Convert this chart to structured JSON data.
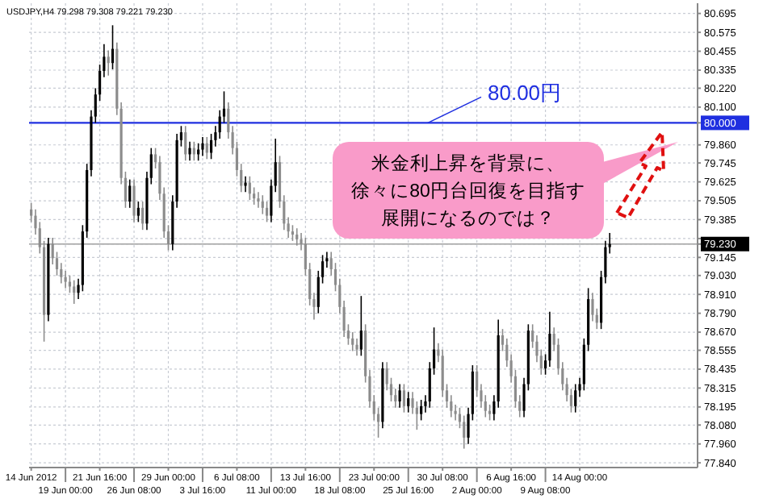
{
  "chart_data": {
    "type": "candlestick",
    "title": "USDJPY,H4 79.298 79.308 79.221 79.230",
    "categories": [
      "14 Jun 2012",
      null,
      null,
      null,
      null,
      null,
      null,
      null,
      "19 Jun 00:00",
      null,
      null,
      null,
      null,
      null,
      null,
      null,
      "21 Jun 16:00",
      null,
      null,
      null,
      null,
      null,
      null,
      null,
      "26 Jun 08:00",
      null,
      null,
      null,
      null,
      null,
      null,
      null,
      "29 Jun 00:00",
      null,
      null,
      null,
      null,
      null,
      null,
      null,
      "3 Jul 16:00",
      null,
      null,
      null,
      null,
      null,
      null,
      null,
      "6 Jul 08:00",
      null,
      null,
      null,
      null,
      null,
      null,
      null,
      "11 Jul 00:00",
      null,
      null,
      null,
      null,
      null,
      null,
      null,
      "13 Jul 16:00",
      null,
      null,
      null,
      null,
      null,
      null,
      null,
      "18 Jul 08:00",
      null,
      null,
      null,
      null,
      null,
      null,
      null,
      "23 Jul 00:00",
      null,
      null,
      null,
      null,
      null,
      null,
      null,
      "25 Jul 16:00",
      null,
      null,
      null,
      null,
      null,
      null,
      null,
      "30 Jul 08:00",
      null,
      null,
      null,
      null,
      null,
      null,
      null,
      "2 Aug 00:00",
      null,
      null,
      null,
      null,
      null,
      null,
      null,
      "6 Aug 16:00",
      null,
      null,
      null,
      null,
      null,
      null,
      null,
      "9 Aug 08:00",
      null,
      null,
      null,
      null,
      null,
      null,
      null,
      "14 Aug 00:00",
      null,
      null,
      null,
      null,
      null,
      null,
      null,
      null,
      null,
      null,
      null,
      null,
      null,
      null,
      null,
      null,
      null,
      null,
      null,
      null,
      null,
      null,
      null,
      null,
      null,
      null,
      null
    ],
    "ohlc": [
      [
        79.45,
        79.49,
        79.37,
        79.41
      ],
      [
        79.41,
        79.45,
        79.29,
        79.33
      ],
      [
        79.33,
        79.37,
        79.17,
        79.21
      ],
      [
        79.21,
        79.25,
        78.61,
        78.78
      ],
      [
        78.78,
        79.27,
        78.74,
        79.23
      ],
      [
        79.23,
        79.27,
        79.1,
        79.14
      ],
      [
        79.14,
        79.18,
        79.03,
        79.07
      ],
      [
        79.07,
        79.11,
        78.98,
        79.02
      ],
      [
        79.02,
        79.06,
        78.95,
        78.99
      ],
      [
        78.99,
        79.03,
        78.92,
        78.96
      ],
      [
        78.96,
        79.0,
        78.85,
        78.92
      ],
      [
        78.92,
        79.01,
        78.88,
        78.97
      ],
      [
        78.97,
        79.35,
        78.93,
        79.31
      ],
      [
        79.31,
        79.74,
        79.27,
        79.7
      ],
      [
        79.7,
        80.08,
        79.66,
        80.04
      ],
      [
        80.04,
        80.22,
        80.0,
        80.18
      ],
      [
        80.18,
        80.37,
        80.14,
        80.33
      ],
      [
        80.33,
        80.5,
        80.29,
        80.42
      ],
      [
        80.42,
        80.46,
        80.3,
        80.38
      ],
      [
        80.38,
        80.62,
        80.34,
        80.47
      ],
      [
        80.47,
        80.51,
        80.05,
        80.09
      ],
      [
        80.09,
        80.13,
        79.61,
        79.65
      ],
      [
        79.65,
        79.69,
        79.46,
        79.5
      ],
      [
        79.5,
        79.64,
        79.46,
        79.6
      ],
      [
        79.6,
        79.64,
        79.37,
        79.41
      ],
      [
        79.41,
        79.5,
        79.37,
        79.46
      ],
      [
        79.46,
        79.5,
        79.32,
        79.36
      ],
      [
        79.36,
        79.69,
        79.32,
        79.65
      ],
      [
        79.65,
        79.84,
        79.61,
        79.8
      ],
      [
        79.8,
        79.84,
        79.71,
        79.75
      ],
      [
        79.75,
        79.79,
        79.51,
        79.55
      ],
      [
        79.55,
        79.59,
        79.27,
        79.31
      ],
      [
        79.31,
        79.35,
        79.19,
        79.23
      ],
      [
        79.23,
        79.54,
        79.19,
        79.5
      ],
      [
        79.5,
        79.93,
        79.46,
        79.89
      ],
      [
        79.89,
        79.98,
        79.85,
        79.94
      ],
      [
        79.94,
        79.98,
        79.76,
        79.8
      ],
      [
        79.8,
        79.88,
        79.76,
        79.84
      ],
      [
        79.84,
        79.88,
        79.76,
        79.8
      ],
      [
        79.8,
        79.87,
        79.76,
        79.83
      ],
      [
        79.83,
        79.91,
        79.79,
        79.87
      ],
      [
        79.87,
        79.91,
        79.77,
        79.81
      ],
      [
        79.81,
        79.93,
        79.77,
        79.89
      ],
      [
        79.89,
        79.98,
        79.85,
        79.94
      ],
      [
        79.94,
        80.08,
        79.9,
        80.04
      ],
      [
        80.04,
        80.2,
        80.0,
        80.09
      ],
      [
        80.09,
        80.13,
        79.9,
        79.94
      ],
      [
        79.94,
        79.98,
        79.8,
        79.84
      ],
      [
        79.84,
        79.88,
        79.66,
        79.7
      ],
      [
        79.7,
        79.74,
        79.56,
        79.6
      ],
      [
        79.6,
        79.66,
        79.56,
        79.62
      ],
      [
        79.62,
        79.66,
        79.51,
        79.55
      ],
      [
        79.55,
        79.59,
        79.48,
        79.52
      ],
      [
        79.52,
        79.56,
        79.46,
        79.5
      ],
      [
        79.5,
        79.54,
        79.42,
        79.46
      ],
      [
        79.46,
        79.5,
        79.37,
        79.41
      ],
      [
        79.41,
        79.64,
        79.37,
        79.6
      ],
      [
        79.6,
        79.9,
        79.56,
        79.75
      ],
      [
        79.75,
        79.79,
        79.46,
        79.5
      ],
      [
        79.5,
        79.54,
        79.32,
        79.36
      ],
      [
        79.36,
        79.4,
        79.27,
        79.31
      ],
      [
        79.31,
        79.35,
        79.25,
        79.29
      ],
      [
        79.29,
        79.33,
        79.22,
        79.26
      ],
      [
        79.26,
        79.3,
        79.19,
        79.23
      ],
      [
        79.23,
        79.27,
        79.03,
        79.07
      ],
      [
        79.07,
        79.11,
        78.84,
        78.88
      ],
      [
        78.88,
        78.92,
        78.75,
        78.83
      ],
      [
        78.83,
        79.06,
        78.79,
        79.02
      ],
      [
        79.02,
        79.16,
        78.98,
        79.12
      ],
      [
        79.12,
        79.18,
        79.08,
        79.14
      ],
      [
        79.14,
        79.18,
        79.03,
        79.07
      ],
      [
        79.07,
        79.11,
        78.93,
        78.97
      ],
      [
        78.97,
        79.01,
        78.79,
        78.83
      ],
      [
        78.83,
        78.87,
        78.64,
        78.68
      ],
      [
        78.68,
        78.72,
        78.59,
        78.63
      ],
      [
        78.63,
        78.67,
        78.55,
        78.59
      ],
      [
        78.59,
        78.63,
        78.52,
        78.56
      ],
      [
        78.56,
        78.9,
        78.52,
        78.68
      ],
      [
        78.68,
        78.72,
        78.35,
        78.39
      ],
      [
        78.39,
        78.43,
        78.19,
        78.23
      ],
      [
        78.23,
        78.27,
        78.11,
        78.15
      ],
      [
        78.15,
        78.19,
        78.0,
        78.1
      ],
      [
        78.1,
        78.48,
        78.06,
        78.44
      ],
      [
        78.44,
        78.48,
        78.3,
        78.34
      ],
      [
        78.34,
        78.38,
        78.23,
        78.27
      ],
      [
        78.27,
        78.31,
        78.19,
        78.23
      ],
      [
        78.23,
        78.34,
        78.19,
        78.3
      ],
      [
        78.3,
        78.34,
        78.16,
        78.2
      ],
      [
        78.2,
        78.29,
        78.16,
        78.25
      ],
      [
        78.25,
        78.29,
        78.15,
        78.19
      ],
      [
        78.19,
        78.23,
        78.05,
        78.15
      ],
      [
        78.15,
        78.24,
        78.11,
        78.2
      ],
      [
        78.2,
        78.27,
        78.16,
        78.23
      ],
      [
        78.23,
        78.48,
        78.19,
        78.44
      ],
      [
        78.44,
        78.7,
        78.4,
        78.56
      ],
      [
        78.56,
        78.6,
        78.48,
        78.52
      ],
      [
        78.52,
        78.56,
        78.26,
        78.3
      ],
      [
        78.3,
        78.34,
        78.19,
        78.23
      ],
      [
        78.23,
        78.27,
        78.13,
        78.17
      ],
      [
        78.17,
        78.21,
        78.11,
        78.15
      ],
      [
        78.15,
        78.19,
        78.06,
        78.1
      ],
      [
        78.1,
        78.14,
        77.93,
        78.0
      ],
      [
        78.0,
        78.19,
        77.96,
        78.15
      ],
      [
        78.15,
        78.46,
        78.11,
        78.42
      ],
      [
        78.42,
        78.46,
        78.26,
        78.3
      ],
      [
        78.3,
        78.34,
        78.19,
        78.23
      ],
      [
        78.23,
        78.27,
        78.13,
        78.17
      ],
      [
        78.17,
        78.21,
        78.11,
        78.15
      ],
      [
        78.15,
        78.27,
        78.11,
        78.23
      ],
      [
        78.23,
        78.75,
        78.19,
        78.65
      ],
      [
        78.65,
        78.69,
        78.55,
        78.59
      ],
      [
        78.59,
        78.63,
        78.45,
        78.49
      ],
      [
        78.49,
        78.53,
        78.35,
        78.39
      ],
      [
        78.39,
        78.43,
        78.19,
        78.23
      ],
      [
        78.23,
        78.27,
        78.13,
        78.17
      ],
      [
        78.17,
        78.38,
        78.13,
        78.34
      ],
      [
        78.34,
        78.72,
        78.3,
        78.68
      ],
      [
        78.68,
        78.72,
        78.57,
        78.61
      ],
      [
        78.61,
        78.65,
        78.48,
        78.52
      ],
      [
        78.52,
        78.56,
        78.4,
        78.44
      ],
      [
        78.44,
        78.53,
        78.4,
        78.49
      ],
      [
        78.49,
        78.8,
        78.45,
        78.66
      ],
      [
        78.66,
        78.7,
        78.55,
        78.59
      ],
      [
        78.59,
        78.63,
        78.4,
        78.44
      ],
      [
        78.44,
        78.48,
        78.3,
        78.34
      ],
      [
        78.34,
        78.38,
        78.23,
        78.27
      ],
      [
        78.27,
        78.31,
        78.16,
        78.2
      ],
      [
        78.2,
        78.34,
        78.16,
        78.3
      ],
      [
        78.3,
        78.38,
        78.26,
        78.34
      ],
      [
        78.34,
        78.63,
        78.3,
        78.59
      ],
      [
        78.59,
        78.95,
        78.55,
        78.88
      ],
      [
        78.88,
        78.92,
        78.74,
        78.78
      ],
      [
        78.78,
        78.82,
        78.69,
        78.73
      ],
      [
        78.73,
        79.06,
        78.69,
        79.02
      ],
      [
        79.02,
        79.25,
        78.98,
        79.21
      ],
      [
        79.21,
        79.3,
        79.17,
        79.23
      ],
      null,
      null,
      null,
      null,
      null,
      null,
      null,
      null,
      null,
      null,
      null,
      null,
      null,
      null,
      null,
      null,
      null,
      null,
      null,
      null
    ],
    "ylim": [
      77.81,
      80.76
    ],
    "yticks": [
      80.695,
      80.575,
      80.455,
      80.335,
      {
        "value": 80.22,
        "label": "80.220"
      },
      {
        "value": 80.1,
        "label": "80.100"
      },
      {
        "value": 80.0,
        "label": "80.000"
      },
      {
        "value": 79.86,
        "label": "79.860"
      },
      79.745,
      79.625,
      79.505,
      79.385,
      {
        "value": 79.265,
        "label": null
      },
      {
        "value": 79.23,
        "label": "79.230"
      },
      79.145,
      {
        "value": 79.03,
        "label": "79.030"
      },
      {
        "value": 78.91,
        "label": "78.910"
      },
      {
        "value": 78.79,
        "label": "78.790"
      },
      {
        "value": 78.67,
        "label": "78.670"
      },
      78.555,
      78.435,
      78.315,
      78.195,
      {
        "value": 78.08,
        "label": "78.080"
      },
      {
        "value": 77.96,
        "label": "77.960"
      },
      {
        "value": 77.84,
        "label": "77.840"
      }
    ],
    "grid": true,
    "ref_lines": [
      {
        "axis": "y",
        "value": 80.0,
        "label": "80.00円",
        "color": "#1f2fe0"
      },
      {
        "axis": "y",
        "value": 79.23,
        "color": "#a0a0a0"
      }
    ],
    "annotations": [
      "米金利上昇を背景に、徐々に80円台回復を目指す展開になるのでは？"
    ]
  }
}
